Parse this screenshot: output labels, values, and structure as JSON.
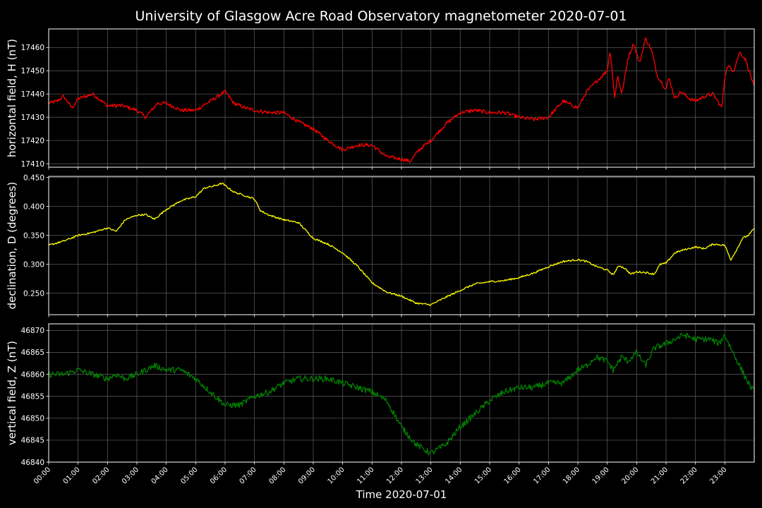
{
  "chart_data": {
    "type": "line",
    "title": "University of Glasgow Acre Road Observatory magnetometer 2020-07-01",
    "xlabel": "Time 2020-07-01",
    "x_ticks": [
      "00:00",
      "01:00",
      "02:00",
      "03:00",
      "04:00",
      "05:00",
      "06:00",
      "07:00",
      "08:00",
      "09:00",
      "10:00",
      "11:00",
      "12:00",
      "13:00",
      "14:00",
      "15:00",
      "16:00",
      "17:00",
      "18:00",
      "19:00",
      "20:00",
      "21:00",
      "22:00",
      "23:00"
    ],
    "xlim_hours": [
      0,
      24
    ],
    "grid": true,
    "background": "#000000",
    "panels": [
      {
        "ylabel": "horizontal field, H (nT)",
        "color": "#ff0000",
        "ylim": [
          17408.5,
          17468
        ],
        "y_ticks": [
          17410,
          17420,
          17430,
          17440,
          17450,
          17460
        ],
        "noise": 0.8,
        "series": [
          {
            "name": "",
            "x": [
              0,
              0.3,
              0.5,
              0.8,
              1.0,
              1.5,
              2.0,
              2.5,
              3.0,
              3.3,
              3.7,
              4.0,
              4.5,
              5.0,
              5.5,
              6.0,
              6.3,
              6.7,
              7.0,
              7.5,
              8.0,
              8.5,
              9.0,
              9.5,
              10.0,
              10.5,
              11.0,
              11.5,
              12.0,
              12.3,
              12.6,
              13.0,
              13.5,
              14.0,
              14.5,
              15.0,
              15.5,
              16.0,
              16.5,
              17.0,
              17.5,
              18.0,
              18.3,
              18.6,
              19.0,
              19.1,
              19.25,
              19.35,
              19.5,
              19.7,
              19.9,
              20.1,
              20.3,
              20.5,
              20.7,
              21.0,
              21.1,
              21.3,
              21.5,
              21.8,
              22.0,
              22.3,
              22.6,
              22.9,
              23.0,
              23.1,
              23.3,
              23.5,
              23.7,
              24.0
            ],
            "y": [
              17436,
              17437,
              17439,
              17434,
              17438,
              17440,
              17435,
              17435,
              17433,
              17430,
              17436,
              17436,
              17433,
              17433,
              17437,
              17441,
              17436,
              17434,
              17433,
              17432,
              17432,
              17428,
              17425,
              17420,
              17416,
              17418,
              17418,
              17413,
              17412,
              17411,
              17416,
              17420,
              17427,
              17432,
              17433,
              17432,
              17432,
              17430,
              17429,
              17430,
              17437,
              17434,
              17441,
              17445,
              17450,
              17459,
              17438,
              17448,
              17440,
              17455,
              17462,
              17453,
              17464,
              17459,
              17448,
              17442,
              17447,
              17438,
              17441,
              17438,
              17437,
              17439,
              17440,
              17434,
              17448,
              17452,
              17450,
              17458,
              17455,
              17443
            ]
          }
        ]
      },
      {
        "ylabel": "declination, D (degrees)",
        "color": "#ffff00",
        "ylim": [
          0.213,
          0.452
        ],
        "y_ticks": [
          0.25,
          0.3,
          0.35,
          0.4,
          0.45
        ],
        "noise": 0.0015,
        "series": [
          {
            "name": "",
            "x": [
              0,
              0.5,
              1.0,
              1.5,
              2.0,
              2.3,
              2.6,
              3.0,
              3.3,
              3.6,
              4.0,
              4.5,
              5.0,
              5.3,
              5.6,
              5.9,
              6.3,
              6.6,
              7.0,
              7.2,
              7.5,
              8.0,
              8.5,
              9.0,
              9.5,
              10.0,
              10.5,
              11.0,
              11.5,
              12.0,
              12.5,
              13.0,
              13.5,
              14.0,
              14.5,
              15.0,
              15.5,
              16.0,
              16.5,
              17.0,
              17.5,
              18.0,
              18.3,
              18.6,
              19.0,
              19.2,
              19.4,
              19.6,
              19.8,
              20.0,
              20.3,
              20.6,
              20.8,
              21.0,
              21.3,
              21.6,
              22.0,
              22.3,
              22.6,
              23.0,
              23.2,
              23.4,
              23.6,
              23.8,
              24.0
            ],
            "y": [
              0.333,
              0.34,
              0.35,
              0.355,
              0.363,
              0.357,
              0.377,
              0.385,
              0.386,
              0.378,
              0.395,
              0.41,
              0.417,
              0.432,
              0.435,
              0.44,
              0.425,
              0.42,
              0.413,
              0.393,
              0.385,
              0.377,
              0.372,
              0.345,
              0.335,
              0.32,
              0.297,
              0.268,
              0.252,
              0.245,
              0.233,
              0.23,
              0.243,
              0.255,
              0.266,
              0.27,
              0.272,
              0.277,
              0.285,
              0.296,
              0.305,
              0.308,
              0.305,
              0.297,
              0.29,
              0.282,
              0.298,
              0.293,
              0.283,
              0.287,
              0.286,
              0.283,
              0.3,
              0.302,
              0.32,
              0.325,
              0.33,
              0.327,
              0.335,
              0.333,
              0.308,
              0.325,
              0.345,
              0.35,
              0.362
            ]
          }
        ]
      },
      {
        "ylabel": "vertical field, Z (nT)",
        "color": "#008000",
        "ylim": [
          46840,
          46871.5
        ],
        "y_ticks": [
          46840,
          46845,
          46850,
          46855,
          46860,
          46865,
          46870
        ],
        "noise": 0.7,
        "series": [
          {
            "name": "",
            "x": [
              0,
              0.5,
              1.0,
              1.5,
              2.0,
              2.3,
              2.6,
              3.0,
              3.3,
              3.6,
              4.0,
              4.5,
              5.0,
              5.5,
              6.0,
              6.5,
              7.0,
              7.5,
              8.0,
              8.5,
              9.0,
              9.5,
              10.0,
              10.5,
              11.0,
              11.5,
              12.0,
              12.5,
              13.0,
              13.5,
              14.0,
              14.5,
              15.0,
              15.5,
              16.0,
              16.5,
              17.0,
              17.5,
              18.0,
              18.3,
              18.6,
              19.0,
              19.2,
              19.5,
              19.7,
              20.0,
              20.3,
              20.6,
              21.0,
              21.3,
              21.6,
              22.0,
              22.5,
              22.8,
              23.0,
              23.2,
              23.5,
              23.8,
              24.0
            ],
            "y": [
              46860,
              46860,
              46861,
              46860,
              46859,
              46860,
              46859,
              46860,
              46861,
              46862,
              46861,
              46861,
              46859,
              46856,
              46853,
              46853,
              46855,
              46856,
              46858,
              46859,
              46859,
              46859,
              46858,
              46857,
              46856,
              46854,
              46848,
              46844,
              46842,
              46844,
              46848,
              46851,
              46854,
              46856,
              46857,
              46857,
              46858,
              46858,
              46861,
              46862,
              46864,
              46863,
              46861,
              46864,
              46863,
              46865,
              46862,
              46866,
              46867,
              46868,
              46869,
              46868,
              46868,
              46867,
              46869,
              46866,
              46862,
              46858,
              46856
            ]
          }
        ]
      }
    ]
  }
}
